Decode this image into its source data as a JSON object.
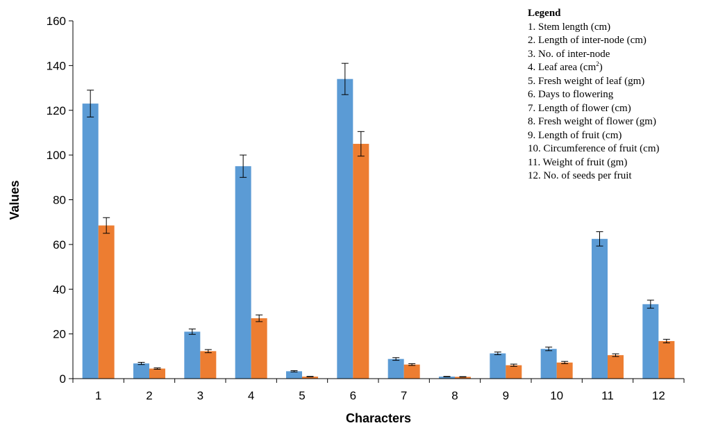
{
  "chart_data": {
    "type": "bar",
    "categories": [
      "1",
      "2",
      "3",
      "4",
      "5",
      "6",
      "7",
      "8",
      "9",
      "10",
      "11",
      "12"
    ],
    "series": [
      {
        "color": "#5b9bd5",
        "values": [
          123,
          6.8,
          21,
          95,
          3.3,
          134,
          8.8,
          0.9,
          11.3,
          13.3,
          62.5,
          33.3
        ],
        "errors": [
          6,
          0.5,
          1.2,
          5,
          0.3,
          7,
          0.6,
          0.1,
          0.6,
          0.8,
          3.2,
          1.8
        ]
      },
      {
        "color": "#ed7d31",
        "values": [
          68.5,
          4.5,
          12.3,
          27,
          0.9,
          105,
          6.3,
          0.8,
          6,
          7.2,
          10.5,
          16.8
        ],
        "errors": [
          3.5,
          0.3,
          0.7,
          1.5,
          0.1,
          5.5,
          0.4,
          0.1,
          0.5,
          0.5,
          0.6,
          0.8
        ]
      }
    ],
    "xlabel": "Characters",
    "ylabel": "Values",
    "ylim": [
      0,
      160
    ],
    "yticks": [
      0,
      20,
      40,
      60,
      80,
      100,
      120,
      140,
      160
    ],
    "grid": false,
    "legend": {
      "title": "Legend",
      "placement": "top-right",
      "items": [
        "1. Stem length (cm)",
        "2. Length of inter-node (cm)",
        "3. No. of inter-node",
        "4. Leaf area (cm",
        "5. Fresh weight of leaf (gm)",
        "6. Days to flowering",
        "7. Length of flower (cm)",
        "8. Fresh weight of flower (gm)",
        "9. Length of fruit (cm)",
        "10. Circumference of fruit (cm)",
        "11. Weight of fruit (gm)",
        "12. No. of seeds per fruit"
      ],
      "item4_superscript": "2",
      "item4_suffix": ")"
    }
  }
}
